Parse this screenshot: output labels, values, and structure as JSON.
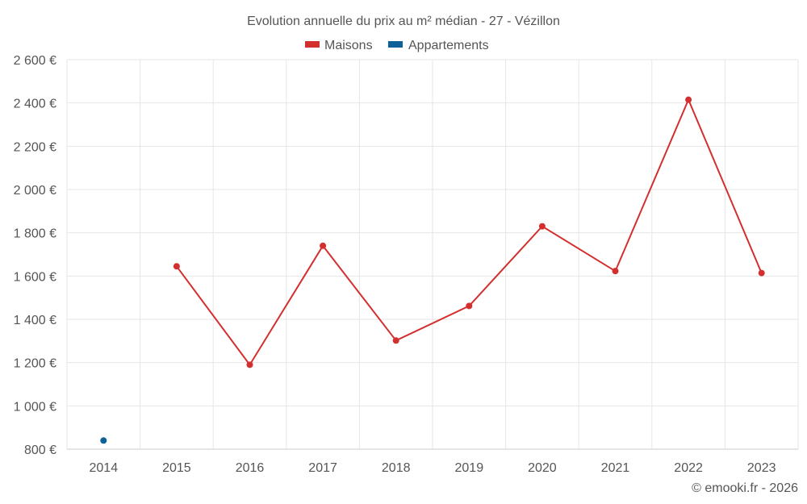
{
  "chart_data": {
    "type": "line",
    "title": "Evolution annuelle du prix au m² médian - 27 - Vézillon",
    "categories": [
      "2014",
      "2015",
      "2016",
      "2017",
      "2018",
      "2019",
      "2020",
      "2021",
      "2022",
      "2023"
    ],
    "series": [
      {
        "name": "Maisons",
        "color": "#d32f2f",
        "values": [
          null,
          1645,
          1190,
          1740,
          1302,
          1462,
          1830,
          1623,
          2415,
          1614
        ]
      },
      {
        "name": "Appartements",
        "color": "#0d6199",
        "values": [
          840,
          null,
          null,
          null,
          null,
          null,
          null,
          null,
          null,
          null
        ]
      }
    ],
    "ylim": [
      800,
      2600
    ],
    "yticks": [
      800,
      1000,
      1200,
      1400,
      1600,
      1800,
      2000,
      2200,
      2400,
      2600
    ],
    "ytick_labels": [
      "800 €",
      "1 000 €",
      "1 200 €",
      "1 400 €",
      "1 600 €",
      "1 800 €",
      "2 000 €",
      "2 200 €",
      "2 400 €",
      "2 600 €"
    ],
    "legend_position": "top-center",
    "grid": true
  },
  "credit": "© emooki.fr - 2026",
  "colors": {
    "grid": "#e6e6e6",
    "axis": "#cccccc",
    "text": "#555555"
  }
}
